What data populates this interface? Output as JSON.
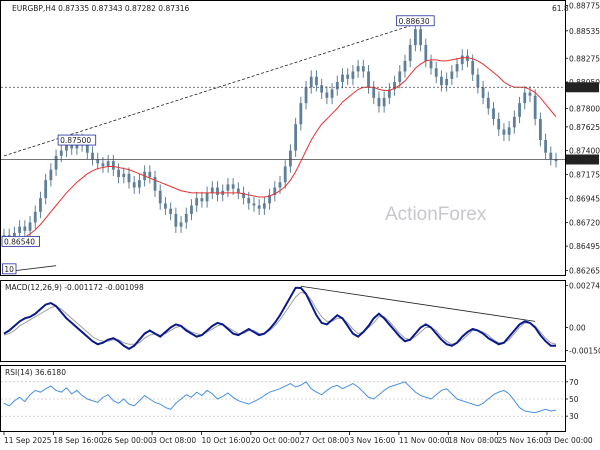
{
  "window": {
    "header": "EURGBP,H4 0.87335 0.87343 0.87282 0.87316",
    "corner_value": "61.8",
    "watermark": "ActionForex"
  },
  "colors": {
    "candles": "#5f7f99",
    "ma": "#e83030",
    "macd": "#0a1a8c",
    "signal": "#a0a0a0",
    "rsi": "#4a90e2",
    "hline": "#444444",
    "boxes": "#1f2f9c",
    "trend": "#222222"
  },
  "chart_data": [
    {
      "type": "line",
      "panel": "price",
      "ylim": [
        0.8625,
        0.8877
      ],
      "ytick_labels": [
        "0.88775",
        "0.88535",
        "0.88275",
        "0.88050",
        "0.87800",
        "0.87625",
        "0.87400",
        "0.87175",
        "0.86945",
        "0.86720",
        "0.86495",
        "0.86265"
      ],
      "ytick_values": [
        0.88775,
        0.88535,
        0.88275,
        0.8805,
        0.878,
        0.87625,
        0.874,
        0.87175,
        0.86945,
        0.8672,
        0.86495,
        0.86265
      ],
      "xtick_labels": [
        "11 Sep 2025",
        "18 Sep 16:00",
        "26 Sep 00:00",
        "3 Oct 08:00",
        "10 Oct 16:00",
        "20 Oct 00:00",
        "27 Oct 08:00",
        "3 Nov 16:00",
        "11 Nov 00:00",
        "18 Nov 08:00",
        "25 Nov 16:00",
        "3 Dec 00:00"
      ],
      "series": [
        {
          "kind": "close",
          "values": [
            0.866,
            0.8658,
            0.8662,
            0.8668,
            0.8664,
            0.8672,
            0.8682,
            0.8695,
            0.8712,
            0.8722,
            0.8735,
            0.874,
            0.8748,
            0.8742,
            0.875,
            0.8745,
            0.8738,
            0.8732,
            0.8728,
            0.8725,
            0.873,
            0.8722,
            0.8715,
            0.8718,
            0.871,
            0.8705,
            0.8712,
            0.872,
            0.8715,
            0.8702,
            0.869,
            0.8685,
            0.868,
            0.8668,
            0.8672,
            0.868,
            0.8688,
            0.8695,
            0.8692,
            0.87,
            0.8705,
            0.8698,
            0.8702,
            0.8708,
            0.8704,
            0.87,
            0.8695,
            0.869,
            0.8688,
            0.8685,
            0.869,
            0.8698,
            0.8705,
            0.871,
            0.8725,
            0.874,
            0.8765,
            0.8785,
            0.88,
            0.881,
            0.8802,
            0.8795,
            0.879,
            0.8798,
            0.8805,
            0.8812,
            0.8808,
            0.8815,
            0.882,
            0.8815,
            0.88,
            0.879,
            0.8782,
            0.879,
            0.8798,
            0.8805,
            0.8815,
            0.8825,
            0.884,
            0.8855,
            0.884,
            0.8825,
            0.8818,
            0.881,
            0.8802,
            0.8808,
            0.8815,
            0.8822,
            0.883,
            0.8825,
            0.8812,
            0.88,
            0.879,
            0.878,
            0.877,
            0.876,
            0.8755,
            0.8762,
            0.8772,
            0.8785,
            0.8795,
            0.8792,
            0.877,
            0.875,
            0.8738,
            0.8732,
            0.873
          ]
        },
        {
          "kind": "moving_average",
          "values": [
            0.865,
            0.8651,
            0.8653,
            0.8655,
            0.8658,
            0.8661,
            0.8665,
            0.867,
            0.8676,
            0.8682,
            0.8688,
            0.8694,
            0.87,
            0.8705,
            0.871,
            0.8714,
            0.8718,
            0.8721,
            0.8723,
            0.8724,
            0.8725,
            0.8725,
            0.8724,
            0.8723,
            0.8722,
            0.872,
            0.8718,
            0.8716,
            0.8714,
            0.8712,
            0.871,
            0.8708,
            0.8706,
            0.8704,
            0.8702,
            0.8701,
            0.87,
            0.87,
            0.87,
            0.87,
            0.87,
            0.87,
            0.87,
            0.87,
            0.87,
            0.87,
            0.8699,
            0.8698,
            0.8697,
            0.8696,
            0.8696,
            0.8697,
            0.8699,
            0.8702,
            0.8706,
            0.8712,
            0.872,
            0.873,
            0.874,
            0.875,
            0.8758,
            0.8765,
            0.877,
            0.8775,
            0.878,
            0.8786,
            0.879,
            0.8794,
            0.8798,
            0.88,
            0.88,
            0.88,
            0.8798,
            0.8797,
            0.8797,
            0.8799,
            0.8802,
            0.8806,
            0.8812,
            0.8818,
            0.8822,
            0.8825,
            0.8826,
            0.8826,
            0.8825,
            0.8825,
            0.8826,
            0.8827,
            0.8828,
            0.8828,
            0.8827,
            0.8825,
            0.8822,
            0.8818,
            0.8814,
            0.881,
            0.8805,
            0.8802,
            0.88,
            0.88,
            0.88,
            0.8798,
            0.8795,
            0.879,
            0.8784,
            0.8778,
            0.8772
          ]
        }
      ],
      "annotations": [
        {
          "label": "0.88630",
          "value": 0.8863
        },
        {
          "label": "0.87500",
          "value": 0.875
        },
        {
          "label": "0.86540",
          "value": 0.8654
        },
        {
          "label": "10",
          "value": 0.8628
        }
      ],
      "horizontal_levels": [
        {
          "label": "0.88000",
          "value": 0.88,
          "style": "dotted"
        },
        {
          "label": "0.87316",
          "value": 0.87316,
          "style": "solid"
        }
      ],
      "trendlines": [
        {
          "style": "dashed",
          "from_index": 0,
          "from": 0.8735,
          "to_index": 81,
          "to": 0.8863
        },
        {
          "style": "solid",
          "from_index": 0,
          "from": 0.8625,
          "to_index": 10,
          "to": 0.8631
        }
      ]
    },
    {
      "type": "line",
      "panel": "macd",
      "title": "MACD(12,26,9) -0.001172 -0.001098",
      "ytick_labels": [
        "0.00274",
        "0.00",
        "-0.001505"
      ],
      "ytick_values": [
        0.00274,
        0.0,
        -0.001505
      ],
      "ylim": [
        -0.002,
        0.00285
      ],
      "series": [
        {
          "kind": "macd",
          "values": [
            -0.0004,
            -0.0002,
            0.0001,
            0.0004,
            0.0006,
            0.0007,
            0.0009,
            0.0012,
            0.0015,
            0.0016,
            0.0014,
            0.001,
            0.0006,
            0.0003,
            0.0,
            -0.0003,
            -0.0006,
            -0.0009,
            -0.0011,
            -0.001,
            -0.0008,
            -0.0007,
            -0.0009,
            -0.0012,
            -0.0014,
            -0.0012,
            -0.0008,
            -0.0004,
            -0.0002,
            -0.0004,
            -0.0006,
            -0.0003,
            0.0,
            0.0002,
            0.0001,
            -0.0002,
            -0.0004,
            -0.0006,
            -0.0005,
            -0.0002,
            0.0001,
            0.0003,
            0.0002,
            -0.0001,
            -0.0004,
            -0.0005,
            -0.0003,
            -0.0001,
            -0.0003,
            -0.0005,
            -0.0004,
            -0.0001,
            0.0003,
            0.0008,
            0.0014,
            0.002,
            0.0026,
            0.0026,
            0.0022,
            0.0015,
            0.0008,
            0.0003,
            0.0002,
            0.0005,
            0.0008,
            0.0006,
            0.0001,
            -0.0004,
            -0.0006,
            -0.0003,
            0.0001,
            0.0006,
            0.0009,
            0.0006,
            0.0002,
            -0.0002,
            -0.0006,
            -0.0009,
            -0.0008,
            -0.0004,
            0.0,
            0.0002,
            0.0,
            -0.0004,
            -0.0008,
            -0.0011,
            -0.0012,
            -0.001,
            -0.0006,
            -0.0003,
            -0.0001,
            -0.0002,
            -0.0004,
            -0.0007,
            -0.0009,
            -0.0011,
            -0.001,
            -0.0006,
            -0.0002,
            0.0002,
            0.0004,
            0.0003,
            0.0,
            -0.0005,
            -0.0009,
            -0.0012,
            -0.0012
          ]
        },
        {
          "kind": "signal",
          "values": [
            -0.0005,
            -0.0004,
            -0.0002,
            0.0001,
            0.0003,
            0.0005,
            0.0007,
            0.0009,
            0.0011,
            0.0013,
            0.0014,
            0.0012,
            0.0009,
            0.0006,
            0.0003,
            0.0,
            -0.0003,
            -0.0006,
            -0.0008,
            -0.0009,
            -0.0009,
            -0.0008,
            -0.0008,
            -0.001,
            -0.0011,
            -0.0011,
            -0.001,
            -0.0007,
            -0.0005,
            -0.0004,
            -0.0005,
            -0.0004,
            -0.0002,
            0.0,
            0.0001,
            -0.0001,
            -0.0003,
            -0.0004,
            -0.0005,
            -0.0003,
            -0.0001,
            0.0001,
            0.0002,
            0.0,
            -0.0002,
            -0.0004,
            -0.0004,
            -0.0002,
            -0.0002,
            -0.0004,
            -0.0004,
            -0.0002,
            0.0001,
            0.0005,
            0.001,
            0.0015,
            0.002,
            0.0023,
            0.0022,
            0.0018,
            0.0012,
            0.0007,
            0.0004,
            0.0004,
            0.0006,
            0.0006,
            0.0003,
            -0.0001,
            -0.0004,
            -0.0003,
            0.0,
            0.0003,
            0.0007,
            0.0007,
            0.0004,
            0.0,
            -0.0004,
            -0.0007,
            -0.0008,
            -0.0006,
            -0.0003,
            0.0,
            0.0,
            -0.0002,
            -0.0006,
            -0.0009,
            -0.0011,
            -0.001,
            -0.0008,
            -0.0005,
            -0.0002,
            -0.0002,
            -0.0003,
            -0.0005,
            -0.0008,
            -0.001,
            -0.001,
            -0.0008,
            -0.0004,
            0.0,
            0.0003,
            0.0003,
            0.0001,
            -0.0003,
            -0.0007,
            -0.001,
            -0.0011
          ]
        }
      ],
      "trendlines": [
        {
          "style": "solid",
          "from_index": 57,
          "from": 0.0027,
          "to_index": 102,
          "to": 0.0004
        }
      ]
    },
    {
      "type": "line",
      "panel": "rsi",
      "title": "RSI(14) 36.6180",
      "ytick_labels": [
        "70",
        "50",
        "30"
      ],
      "ytick_values": [
        70,
        50,
        30
      ],
      "ylim": [
        15,
        85
      ],
      "series": [
        {
          "kind": "rsi",
          "values": [
            45,
            42,
            48,
            52,
            47,
            55,
            60,
            58,
            62,
            65,
            60,
            58,
            63,
            56,
            60,
            54,
            50,
            48,
            46,
            52,
            55,
            48,
            45,
            50,
            44,
            42,
            48,
            54,
            50,
            46,
            44,
            40,
            38,
            45,
            50,
            55,
            52,
            58,
            54,
            60,
            56,
            50,
            53,
            57,
            52,
            48,
            46,
            44,
            47,
            50,
            54,
            58,
            60,
            62,
            65,
            68,
            64,
            66,
            70,
            62,
            58,
            55,
            60,
            64,
            66,
            62,
            65,
            68,
            64,
            58,
            52,
            50,
            55,
            60,
            64,
            66,
            68,
            70,
            64,
            58,
            54,
            52,
            50,
            55,
            60,
            62,
            56,
            50,
            48,
            46,
            44,
            42,
            45,
            50,
            55,
            58,
            60,
            56,
            48,
            40,
            36,
            35,
            34,
            36,
            38,
            36,
            37
          ]
        }
      ]
    }
  ]
}
